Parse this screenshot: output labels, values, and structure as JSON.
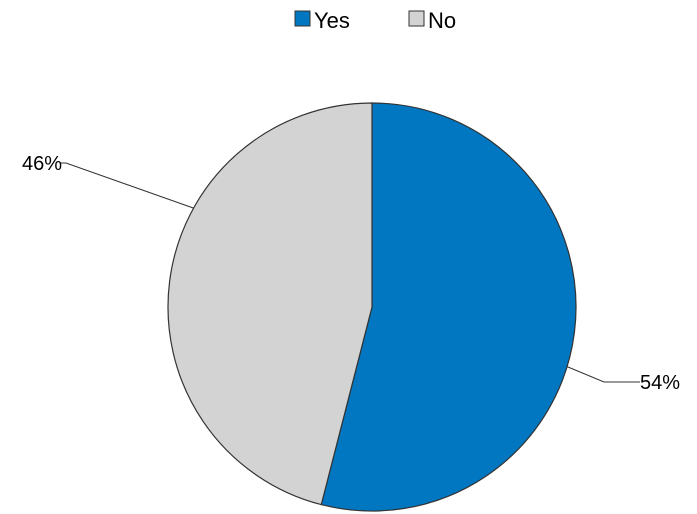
{
  "chart_data": {
    "type": "pie",
    "title": "",
    "categories": [
      "Yes",
      "No"
    ],
    "values": [
      54,
      46
    ],
    "data_labels": [
      "54%",
      "46%"
    ],
    "colors": [
      "#0077c0",
      "#d3d3d3"
    ],
    "legend": {
      "placement": "top-center",
      "entries": [
        "Yes",
        "No"
      ]
    },
    "start_angle_deg": 0,
    "direction": "clockwise"
  }
}
